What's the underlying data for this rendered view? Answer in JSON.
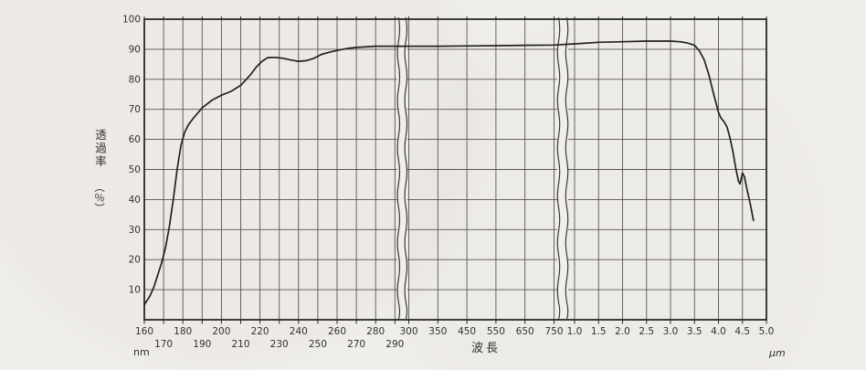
{
  "figure": {
    "x_axis_title": "波長",
    "y_axis_title": "透過率",
    "y_axis_unit": "（％）",
    "x_unit_left": "nm",
    "x_unit_right": "μm"
  },
  "colors": {
    "paper": "#f1efeb",
    "grid": "#57544c",
    "border": "#2a2824",
    "curve": "#23211d",
    "label": "#33312c"
  },
  "chart_data": {
    "type": "line",
    "title": "",
    "xlabel": "波長",
    "ylabel": "透過率（％）",
    "ylim": [
      0,
      100
    ],
    "grid": true,
    "y_tick_labels": [
      "10",
      "20",
      "30",
      "40",
      "50",
      "60",
      "70",
      "80",
      "90",
      "100"
    ],
    "x_segments": [
      {
        "unit": "nm",
        "stagger": true,
        "ticks": [
          "160",
          "170",
          "180",
          "190",
          "200",
          "210",
          "220",
          "230",
          "240",
          "250",
          "260",
          "270",
          "280",
          "290"
        ]
      },
      {
        "unit": "nm",
        "stagger": false,
        "ticks": [
          "300",
          "350",
          "450",
          "550",
          "650",
          "750"
        ]
      },
      {
        "unit": "μm",
        "stagger": false,
        "ticks": [
          "1.0",
          "1.5",
          "2.0",
          "2.5",
          "3.0",
          "3.5",
          "4.0",
          "4.5",
          "5.0"
        ]
      }
    ],
    "axis_breaks": [
      {
        "between": [
          "290 nm",
          "300 nm"
        ]
      },
      {
        "between": [
          "750 nm",
          "1.0 μm"
        ]
      }
    ],
    "series": [
      {
        "name": "透過率",
        "points_nm": [
          [
            160,
            5
          ],
          [
            163,
            8
          ],
          [
            165,
            11
          ],
          [
            167,
            15
          ],
          [
            169,
            19
          ],
          [
            171,
            24
          ],
          [
            173,
            31
          ],
          [
            175,
            40
          ],
          [
            177,
            50
          ],
          [
            179,
            58
          ],
          [
            181,
            62.5
          ],
          [
            183,
            65
          ],
          [
            186,
            67.5
          ],
          [
            190,
            70.5
          ],
          [
            195,
            73
          ],
          [
            200,
            74.7
          ],
          [
            205,
            76
          ],
          [
            210,
            78
          ],
          [
            215,
            81.5
          ],
          [
            218,
            84
          ],
          [
            221,
            86
          ],
          [
            224,
            87.2
          ],
          [
            228,
            87.3
          ],
          [
            232,
            87
          ],
          [
            236,
            86.4
          ],
          [
            240,
            86
          ],
          [
            244,
            86.2
          ],
          [
            248,
            87
          ],
          [
            252,
            88.3
          ],
          [
            256,
            89
          ],
          [
            260,
            89.6
          ],
          [
            265,
            90.2
          ],
          [
            270,
            90.6
          ],
          [
            280,
            91
          ],
          [
            290,
            91
          ],
          [
            300,
            91
          ],
          [
            350,
            91
          ],
          [
            450,
            91.1
          ],
          [
            550,
            91.2
          ],
          [
            650,
            91.3
          ],
          [
            750,
            91.4
          ]
        ],
        "points_um": [
          [
            1.0,
            91.8
          ],
          [
            1.5,
            92.3
          ],
          [
            2.0,
            92.5
          ],
          [
            2.5,
            92.7
          ],
          [
            3.0,
            92.7
          ],
          [
            3.2,
            92.5
          ],
          [
            3.35,
            92.1
          ],
          [
            3.5,
            91.3
          ],
          [
            3.6,
            89.5
          ],
          [
            3.7,
            86.5
          ],
          [
            3.8,
            81.5
          ],
          [
            3.9,
            75
          ],
          [
            3.95,
            72
          ],
          [
            4.0,
            69
          ],
          [
            4.05,
            67.2
          ],
          [
            4.12,
            65.8
          ],
          [
            4.18,
            64
          ],
          [
            4.24,
            60.5
          ],
          [
            4.3,
            56
          ],
          [
            4.36,
            50.5
          ],
          [
            4.42,
            46
          ],
          [
            4.45,
            45.2
          ],
          [
            4.5,
            48.8
          ],
          [
            4.54,
            47.6
          ],
          [
            4.6,
            43
          ],
          [
            4.67,
            38
          ],
          [
            4.73,
            33
          ]
        ]
      }
    ]
  }
}
